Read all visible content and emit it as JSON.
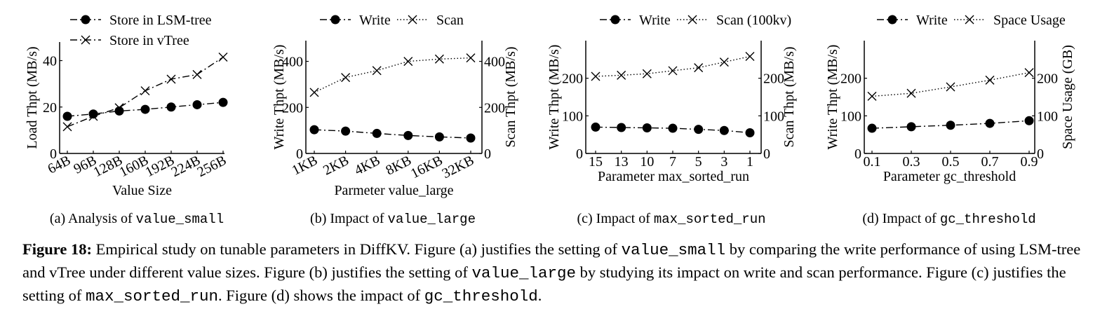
{
  "chart_data": [
    {
      "type": "line",
      "caption_pre": "(a)  Analysis of ",
      "caption_code": "value_small",
      "xlabel": "Value Size",
      "ylabel": "Load Thpt (MB/s)",
      "categories": [
        "64B",
        "96B",
        "128B",
        "160B",
        "192B",
        "224B",
        "256B"
      ],
      "ylim": [
        0,
        48
      ],
      "yticks": [
        0,
        20,
        40
      ],
      "series": [
        {
          "name": "Store in LSM-tree",
          "marker": "dot",
          "line": "dashdot",
          "values": [
            16,
            17,
            18.3,
            19,
            20,
            21,
            22
          ]
        },
        {
          "name": "Store in vTree",
          "marker": "x",
          "line": "dashdot",
          "values": [
            11.5,
            16,
            19.7,
            27,
            32,
            34,
            41.5
          ]
        }
      ],
      "legend": "top"
    },
    {
      "type": "line",
      "caption_pre": "(b)  Impact of ",
      "caption_code": "value_large",
      "xlabel": "Parmeter value_large",
      "ylabel": "Write Thpt (MB/s)",
      "ylabel_right": "Scan Thpt (MB/s)",
      "categories": [
        "1KB",
        "2KB",
        "4KB",
        "8KB",
        "16KB",
        "32KB"
      ],
      "ylim": [
        0,
        490
      ],
      "yticks": [
        0,
        200,
        400
      ],
      "ylim_right": [
        0,
        490
      ],
      "yticks_right": [
        0,
        200,
        400
      ],
      "series": [
        {
          "name": "Write",
          "marker": "dot",
          "line": "dashdot",
          "axis": "left",
          "values": [
            103,
            97,
            87,
            78,
            72,
            67
          ]
        },
        {
          "name": "Scan",
          "marker": "x",
          "line": "dotted",
          "axis": "right",
          "values": [
            265,
            330,
            360,
            400,
            410,
            415
          ]
        }
      ],
      "legend": "top"
    },
    {
      "type": "line",
      "caption_pre": "(c)  Impact of ",
      "caption_code": "max_sorted_run",
      "xlabel": "Parameter max_sorted_run",
      "ylabel": "Write Thpt (MB/s)",
      "ylabel_right": "Scan Thpt (MB/s)",
      "categories": [
        "15",
        "13",
        "10",
        "7",
        "5",
        "3",
        "1"
      ],
      "ylim": [
        0,
        300
      ],
      "yticks": [
        0,
        100,
        200
      ],
      "ylim_right": [
        0,
        300
      ],
      "yticks_right": [
        0,
        100,
        200
      ],
      "series": [
        {
          "name": "Write",
          "marker": "dot",
          "line": "dashdot",
          "axis": "left",
          "values": [
            70,
            69,
            68,
            67,
            64,
            61,
            55
          ]
        },
        {
          "name": "Scan (100kv)",
          "marker": "x",
          "line": "dotted",
          "axis": "right",
          "values": [
            205,
            208,
            212,
            220,
            228,
            243,
            258
          ]
        }
      ],
      "legend": "top"
    },
    {
      "type": "line",
      "caption_pre": "(d)  Impact of ",
      "caption_code": "gc_threshold",
      "xlabel": "Parameter gc_threshold",
      "ylabel": "Write Thpt (MB/s)",
      "ylabel_right": "Space Usage (GB)",
      "categories": [
        "0.1",
        "0.3",
        "0.5",
        "0.7",
        "0.9"
      ],
      "ylim": [
        0,
        300
      ],
      "yticks": [
        0,
        100,
        200
      ],
      "ylim_right": [
        0,
        300
      ],
      "yticks_right": [
        0,
        100,
        200
      ],
      "series": [
        {
          "name": "Write",
          "marker": "dot",
          "line": "dashdot",
          "axis": "left",
          "values": [
            67,
            71,
            75,
            80,
            87
          ]
        },
        {
          "name": "Space Usage",
          "marker": "x",
          "line": "dotted",
          "axis": "right",
          "values": [
            152,
            160,
            177,
            195,
            215
          ]
        }
      ],
      "legend": "top"
    }
  ],
  "caption": {
    "label": "Figure 18:",
    "t1": " Empirical study on tunable parameters in DiffKV. Figure (a) justifies the setting of ",
    "c1": "value_small",
    "t2": " by comparing the write performance of using LSM-tree and vTree under different value sizes. Figure (b) justifies the setting of ",
    "c2": "value_large",
    "t3": " by studying its impact on write and scan performance. Figure (c) justifies the setting of ",
    "c3": "max_sorted_run",
    "t4": ". Figure (d) shows the impact of ",
    "c4": "gc_threshold",
    "t5": "."
  }
}
